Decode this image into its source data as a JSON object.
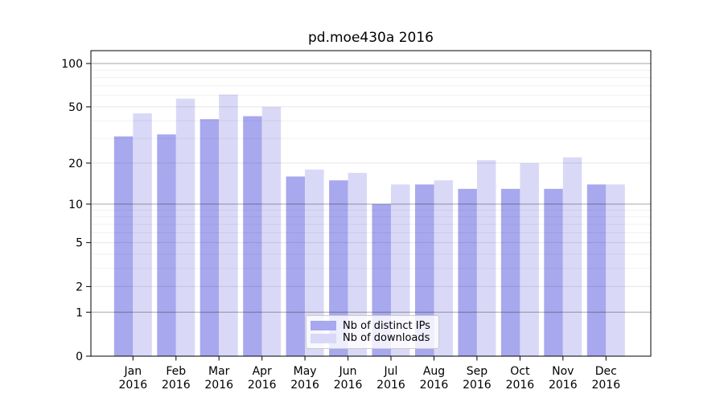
{
  "chart_data": {
    "type": "bar",
    "title": "pd.moe430a 2016",
    "categories": [
      "Jan",
      "Feb",
      "Mar",
      "Apr",
      "May",
      "Jun",
      "Jul",
      "Aug",
      "Sep",
      "Oct",
      "Nov",
      "Dec"
    ],
    "year_label": "2016",
    "series": [
      {
        "name": "Nb of distinct IPs",
        "color": "#a8a8ee",
        "values": [
          31,
          32,
          41,
          43,
          16,
          15,
          10,
          14,
          13,
          13,
          13,
          14
        ]
      },
      {
        "name": "Nb of downloads",
        "color": "#d9d9f7",
        "values": [
          45,
          57,
          61,
          50,
          18,
          17,
          14,
          15,
          21,
          20,
          22,
          14
        ]
      }
    ],
    "yticks": [
      0,
      1,
      2,
      5,
      10,
      20,
      50,
      100
    ],
    "scale": "symlog: y position proportional to log10(1+value)",
    "ylim": [
      0,
      123
    ],
    "grid": true,
    "legend_position": "lower center",
    "background_color": "#ffffff",
    "major_grid_values": [
      1,
      10,
      100
    ],
    "minor_grid_values": [
      2,
      3,
      4,
      5,
      6,
      7,
      8,
      9,
      20,
      30,
      40,
      50,
      60,
      70,
      80,
      90
    ]
  }
}
